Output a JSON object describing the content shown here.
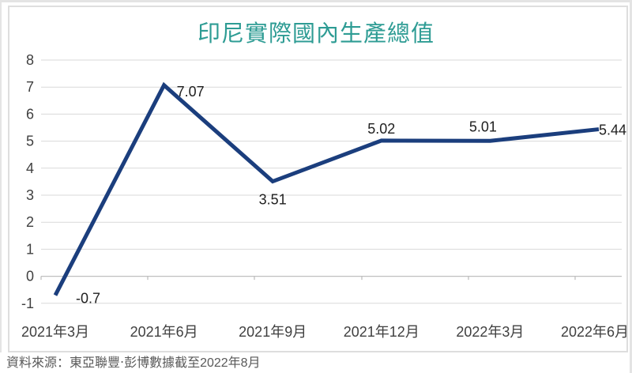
{
  "title": "印尼實際國內生產總值",
  "source_note": "資料來源：東亞聯豐‧彭博數據截至2022年8月",
  "chart_data": {
    "type": "line",
    "title": "印尼實際國內生產總值",
    "categories": [
      "2021年3月",
      "2021年6月",
      "2021年9月",
      "2021年12月",
      "2022年3月",
      "2022年6月"
    ],
    "series": [
      {
        "name": "印尼實際國內生產總值",
        "values": [
          -0.7,
          7.07,
          3.51,
          5.02,
          5.01,
          5.44
        ]
      }
    ],
    "data_labels": [
      "-0.7",
      "7.07",
      "3.51",
      "5.02",
      "5.01",
      "5.44"
    ],
    "xlabel": "",
    "ylabel": "",
    "ylim": [
      -1,
      8
    ],
    "yticks": [
      -1,
      0,
      1,
      2,
      3,
      4,
      5,
      6,
      7,
      8
    ],
    "grid": "horizontal",
    "legend": "none",
    "colors": {
      "line": "#1b3e7d",
      "grid": "#d9d9d9",
      "zero_axis": "#bfbfbf",
      "tick_labels": "#404040",
      "data_labels": "#1f1f1f",
      "title": "#2e9c94",
      "source": "#595959",
      "frame_border": "#dedede"
    },
    "line_width": 5
  }
}
